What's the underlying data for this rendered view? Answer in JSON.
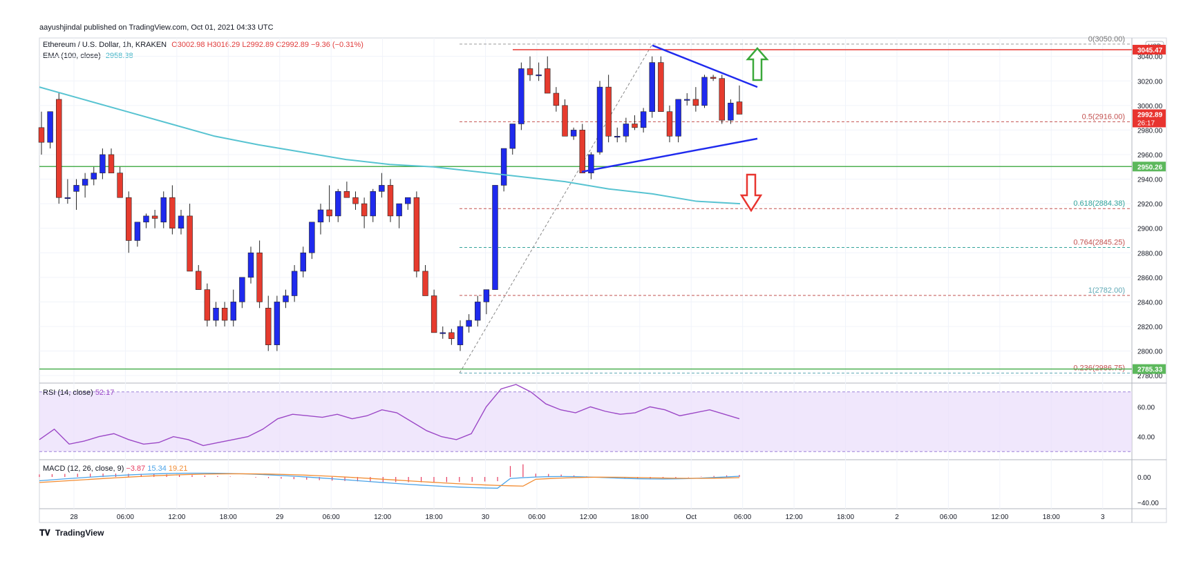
{
  "publisher": "aayushjindal published on TradingView.com, Oct 01, 2021 04:33 UTC",
  "brand": "TradingView",
  "symbol": {
    "title": "Ethereum / U.S. Dollar, 1h, KRAKEN",
    "ohlc": "O3002.98 H3016.29 L2992.89 C2992.89 −9.36 (−0.31%)"
  },
  "ema": {
    "label": "EMA (100, close)",
    "value": "2958.38"
  },
  "currency": "USD",
  "price_axis": {
    "ticks": [
      "3040.00",
      "3020.00",
      "3000.00",
      "2980.00",
      "2960.00",
      "2940.00",
      "2920.00",
      "2900.00",
      "2880.00",
      "2860.00",
      "2840.00",
      "2820.00",
      "2800.00",
      "2780.00"
    ],
    "badges": [
      {
        "text": "3045.47",
        "color": "#e8342f"
      },
      {
        "text": "2992.89",
        "color": "#e8342f",
        "sub": "26:17"
      },
      {
        "text": "2950.26",
        "color": "#5cb85c"
      },
      {
        "text": "2785.33",
        "color": "#5cb85c"
      }
    ]
  },
  "time_axis": [
    "28",
    "06:00",
    "12:00",
    "18:00",
    "29",
    "06:00",
    "12:00",
    "18:00",
    "30",
    "06:00",
    "12:00",
    "18:00",
    "Oct",
    "06:00",
    "12:00",
    "18:00",
    "2",
    "06:00",
    "12:00",
    "18:00",
    "3"
  ],
  "fib_labels": [
    {
      "text": "0(3050.00)",
      "color": "#777777"
    },
    {
      "text": "0.236(2986.75)",
      "color": "#c2504f"
    },
    {
      "text": "0.5(2916.00)",
      "color": "#c2504f"
    },
    {
      "text": "0.618(2884.38)",
      "color": "#30a29a"
    },
    {
      "text": "0.764(2845.25)",
      "color": "#c2504f"
    },
    {
      "text": "1(2782.00)",
      "color": "#5ea8b5"
    }
  ],
  "rsi": {
    "label": "RSI (14, close)",
    "value": "52.17",
    "ticks": [
      "60.00",
      "40.00"
    ]
  },
  "macd": {
    "label": "MACD (12, 26, close, 9)",
    "v1": "−3.87",
    "v2": "15.34",
    "v3": "19.21",
    "ticks": [
      "0.00",
      "−40.00"
    ]
  },
  "chart_data": {
    "type": "candlestick",
    "title": "Ethereum / U.S. Dollar, 1h, KRAKEN",
    "ylim": [
      2775,
      3055
    ],
    "candles": [
      [
        2982,
        2995,
        2960,
        2970
      ],
      [
        2970,
        2995,
        2965,
        2995
      ],
      [
        3005,
        3010,
        2920,
        2925
      ],
      [
        2925,
        2940,
        2920,
        2925
      ],
      [
        2930,
        2940,
        2915,
        2935
      ],
      [
        2935,
        2945,
        2925,
        2940
      ],
      [
        2940,
        2950,
        2935,
        2945
      ],
      [
        2945,
        2965,
        2940,
        2960
      ],
      [
        2960,
        2965,
        2945,
        2945
      ],
      [
        2945,
        2950,
        2925,
        2925
      ],
      [
        2925,
        2930,
        2880,
        2890
      ],
      [
        2890,
        2905,
        2885,
        2905
      ],
      [
        2905,
        2912,
        2900,
        2910
      ],
      [
        2910,
        2915,
        2900,
        2908
      ],
      [
        2905,
        2930,
        2900,
        2925
      ],
      [
        2925,
        2935,
        2895,
        2900
      ],
      [
        2900,
        2915,
        2895,
        2910
      ],
      [
        2910,
        2920,
        2865,
        2865
      ],
      [
        2865,
        2870,
        2850,
        2850
      ],
      [
        2850,
        2855,
        2820,
        2825
      ],
      [
        2825,
        2840,
        2820,
        2835
      ],
      [
        2835,
        2840,
        2820,
        2825
      ],
      [
        2825,
        2850,
        2820,
        2840
      ],
      [
        2840,
        2860,
        2835,
        2860
      ],
      [
        2860,
        2885,
        2855,
        2880
      ],
      [
        2880,
        2890,
        2835,
        2840
      ],
      [
        2835,
        2845,
        2800,
        2805
      ],
      [
        2805,
        2845,
        2800,
        2840
      ],
      [
        2840,
        2850,
        2835,
        2845
      ],
      [
        2845,
        2870,
        2840,
        2865
      ],
      [
        2865,
        2885,
        2860,
        2880
      ],
      [
        2880,
        2905,
        2875,
        2905
      ],
      [
        2905,
        2920,
        2895,
        2915
      ],
      [
        2915,
        2935,
        2905,
        2910
      ],
      [
        2910,
        2932,
        2905,
        2930
      ],
      [
        2930,
        2938,
        2925,
        2925
      ],
      [
        2925,
        2930,
        2915,
        2920
      ],
      [
        2920,
        2925,
        2900,
        2910
      ],
      [
        2910,
        2932,
        2905,
        2930
      ],
      [
        2930,
        2945,
        2925,
        2935
      ],
      [
        2935,
        2940,
        2905,
        2910
      ],
      [
        2910,
        2920,
        2900,
        2920
      ],
      [
        2920,
        2925,
        2915,
        2925
      ],
      [
        2925,
        2930,
        2860,
        2865
      ],
      [
        2865,
        2870,
        2845,
        2845
      ],
      [
        2845,
        2850,
        2815,
        2815
      ],
      [
        2815,
        2820,
        2810,
        2815
      ],
      [
        2815,
        2818,
        2805,
        2810
      ],
      [
        2805,
        2825,
        2800,
        2820
      ],
      [
        2820,
        2830,
        2815,
        2825
      ],
      [
        2825,
        2845,
        2820,
        2840
      ],
      [
        2840,
        2850,
        2830,
        2850
      ],
      [
        2850,
        2935,
        2850,
        2935
      ],
      [
        2935,
        2965,
        2930,
        2965
      ],
      [
        2965,
        2985,
        2960,
        2985
      ],
      [
        2985,
        3035,
        2980,
        3030
      ],
      [
        3030,
        3040,
        3020,
        3025
      ],
      [
        3025,
        3035,
        3020,
        3025
      ],
      [
        3030,
        3040,
        3010,
        3010
      ],
      [
        3010,
        3015,
        2995,
        3000
      ],
      [
        3000,
        3005,
        2975,
        2975
      ],
      [
        2975,
        2982,
        2972,
        2980
      ],
      [
        2980,
        2985,
        2945,
        2945
      ],
      [
        2945,
        2962,
        2940,
        2960
      ],
      [
        2962,
        3020,
        2960,
        3015
      ],
      [
        3015,
        3025,
        2970,
        2975
      ],
      [
        2975,
        2982,
        2970,
        2975
      ],
      [
        2975,
        2990,
        2970,
        2985
      ],
      [
        2985,
        2992,
        2980,
        2982
      ],
      [
        2982,
        2998,
        2978,
        2995
      ],
      [
        2995,
        3040,
        2990,
        3035
      ],
      [
        3035,
        3040,
        2995,
        2995
      ],
      [
        2995,
        3000,
        2970,
        2975
      ],
      [
        2975,
        3005,
        2970,
        3005
      ],
      [
        3005,
        3010,
        3000,
        3005
      ],
      [
        3005,
        3015,
        2995,
        3000
      ],
      [
        3000,
        3025,
        2998,
        3023
      ],
      [
        3023,
        3025,
        3020,
        3022
      ],
      [
        3022,
        3025,
        2985,
        2988
      ],
      [
        2988,
        3005,
        2985,
        3002
      ],
      [
        3002.98,
        3016.29,
        2992.89,
        2992.89
      ]
    ],
    "ema100": [
      3015,
      3005,
      2995,
      2985,
      2975,
      2968,
      2962,
      2956,
      2952,
      2950,
      2946,
      2942,
      2938,
      2932,
      2928,
      2922,
      2920
    ],
    "support_levels": [
      2950.26,
      2785.33
    ],
    "resistance_levels": [
      3045.47
    ],
    "fibonacci": {
      "high": 3050.0,
      "low": 2782.0,
      "levels": {
        "0": 3050.0,
        "0.236": 2986.75,
        "0.5": 2916.0,
        "0.618": 2884.38,
        "0.764": 2845.25,
        "1": 2782.0
      }
    },
    "rsi_series": [
      38,
      45,
      35,
      37,
      40,
      42,
      38,
      35,
      36,
      40,
      38,
      34,
      36,
      38,
      40,
      45,
      52,
      55,
      54,
      53,
      55,
      52,
      54,
      58,
      56,
      50,
      44,
      40,
      38,
      42,
      60,
      72,
      75,
      70,
      62,
      58,
      56,
      60,
      57,
      55,
      56,
      60,
      58,
      54,
      56,
      58,
      55,
      52
    ]
  }
}
